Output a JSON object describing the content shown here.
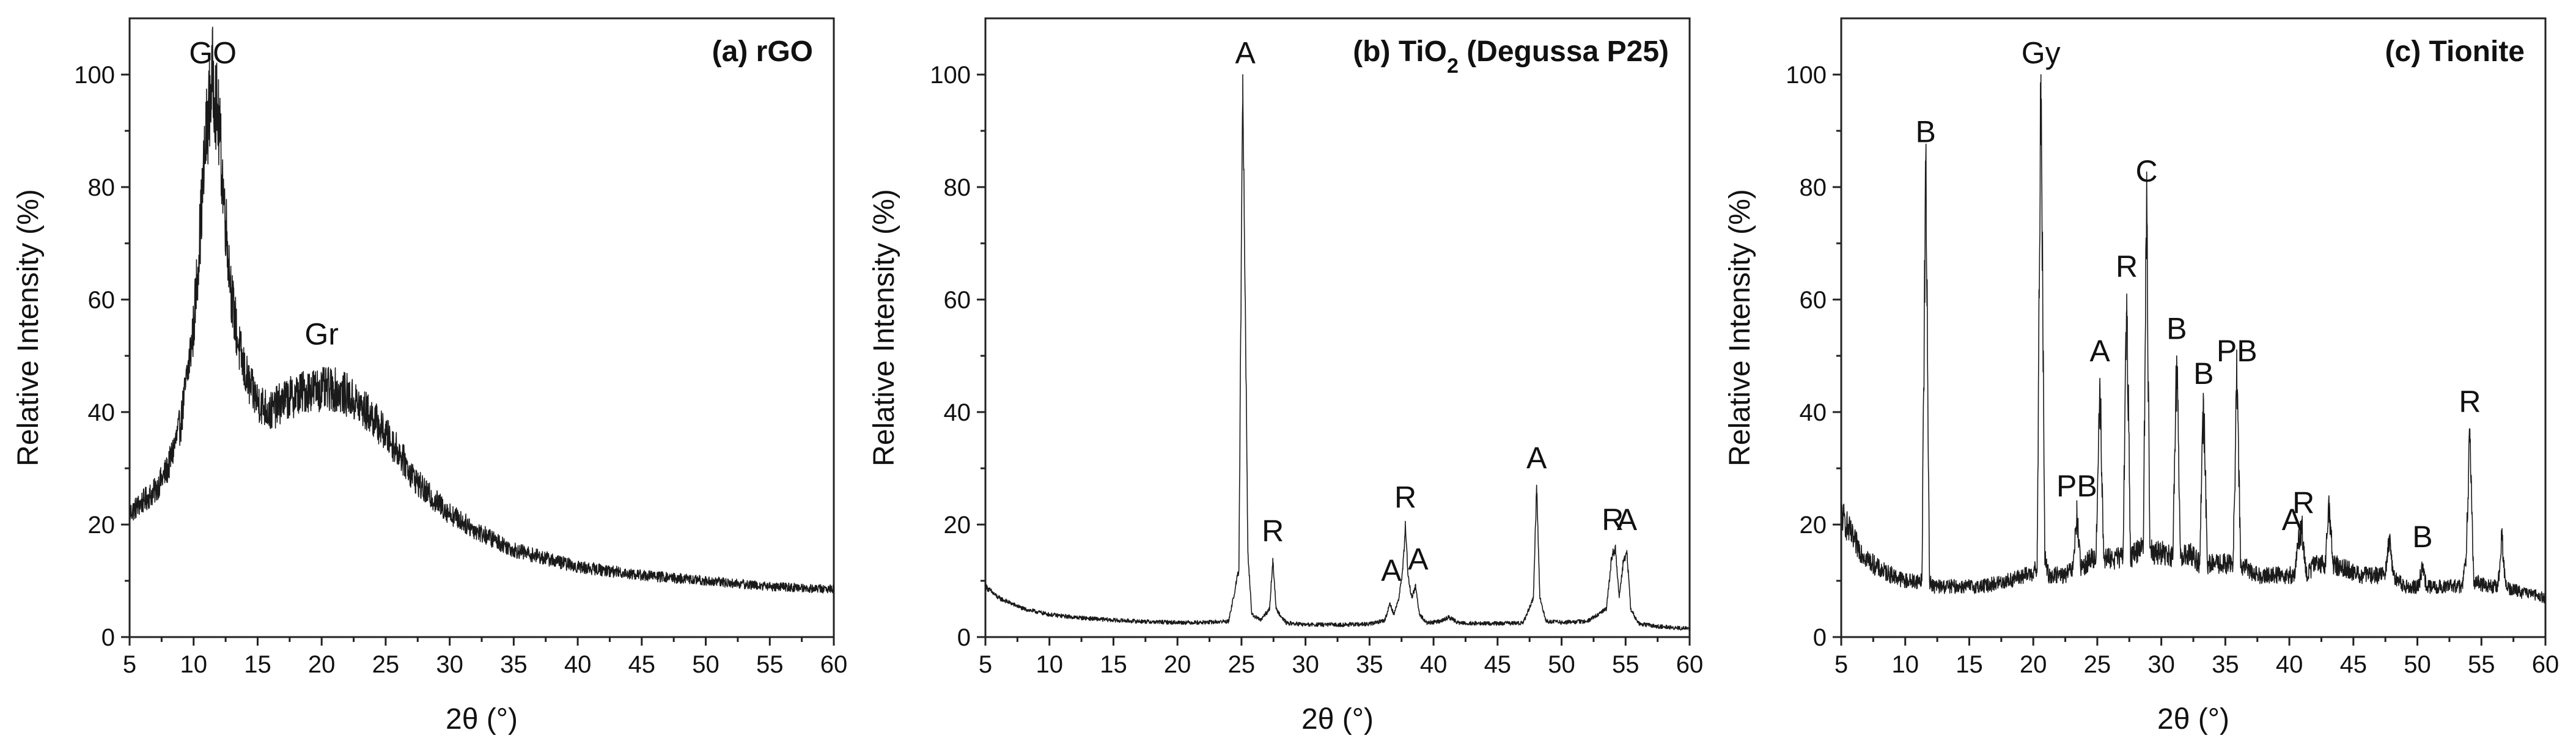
{
  "chart_data": [
    {
      "type": "line",
      "title": "(a) rGO",
      "xlabel": "2θ (°)",
      "ylabel": "Relative Intensity (%)",
      "xlim": [
        5,
        60
      ],
      "ylim": [
        0,
        110
      ],
      "xticks": [
        5,
        10,
        15,
        20,
        25,
        30,
        35,
        40,
        45,
        50,
        55,
        60
      ],
      "yticks": [
        0,
        20,
        40,
        60,
        80,
        100
      ],
      "line_color": "#1a1a1a",
      "series": [
        {
          "name": "rGO",
          "x": [
            5,
            6,
            7,
            8,
            9,
            10,
            10.5,
            11,
            11.5,
            12,
            12.5,
            13,
            13.5,
            14,
            14.5,
            15,
            16,
            17,
            18,
            19,
            20,
            21,
            22,
            23,
            24,
            25,
            26,
            27,
            28,
            30,
            32,
            35,
            40,
            45,
            50,
            55,
            60
          ],
          "y": [
            22,
            24,
            26,
            30,
            38,
            55,
            72,
            90,
            100,
            90,
            74,
            60,
            52,
            47,
            44,
            42,
            40,
            42,
            43,
            44,
            44,
            44,
            43,
            41,
            39,
            36,
            33,
            29,
            26,
            22,
            19,
            15.5,
            12.5,
            11,
            10,
            9,
            8.5
          ]
        }
      ],
      "annotations": [
        {
          "text": "GO",
          "x": 11.5,
          "y": 102
        },
        {
          "text": "Gr",
          "x": 20,
          "y": 52
        }
      ]
    },
    {
      "type": "line",
      "title": "(b) TiO2 (Degussa P25)",
      "title_parts": {
        "pre": "(b) TiO",
        "sub": "2",
        "post": " (Degussa P25)"
      },
      "xlabel": "2θ (°)",
      "ylabel": "Relative Intensity (%)",
      "xlim": [
        5,
        60
      ],
      "ylim": [
        0,
        110
      ],
      "xticks": [
        5,
        10,
        15,
        20,
        25,
        30,
        35,
        40,
        45,
        50,
        55,
        60
      ],
      "yticks": [
        0,
        20,
        40,
        60,
        80,
        100
      ],
      "line_color": "#1a1a1a",
      "series": [
        {
          "name": "TiO2 (Degussa P25)",
          "x": [
            5,
            6,
            7,
            8,
            10,
            12,
            15,
            18,
            20,
            22,
            24,
            24.8,
            25.1,
            25.3,
            25.5,
            25.8,
            26.5,
            27.2,
            27.45,
            27.7,
            28.5,
            30,
            33,
            35,
            36.2,
            36.6,
            36.9,
            37.3,
            37.6,
            37.8,
            38.0,
            38.3,
            38.6,
            38.9,
            39.5,
            40.5,
            41.2,
            42,
            44,
            47,
            47.8,
            48.05,
            48.3,
            48.8,
            50,
            52,
            53.5,
            53.9,
            54.2,
            54.5,
            54.8,
            55.1,
            55.4,
            56,
            57,
            58,
            60
          ],
          "y": [
            9,
            7,
            6,
            5,
            4,
            3.5,
            3,
            2.7,
            2.6,
            2.6,
            2.8,
            12,
            100,
            60,
            15,
            4,
            3,
            5,
            14,
            5,
            2.5,
            2.2,
            2.2,
            2.3,
            3,
            6,
            4,
            7,
            12,
            20,
            11,
            7,
            9,
            4,
            2.5,
            2.8,
            3.5,
            2.5,
            2.4,
            2.5,
            7,
            27,
            7,
            2.8,
            2.6,
            2.8,
            5,
            14,
            16,
            7,
            13,
            15,
            5,
            2.5,
            2,
            1.8,
            1.5
          ]
        }
      ],
      "annotations": [
        {
          "text": "A",
          "x": 25.3,
          "y": 102
        },
        {
          "text": "R",
          "x": 27.45,
          "y": 17
        },
        {
          "text": "A",
          "x": 36.7,
          "y": 10
        },
        {
          "text": "R",
          "x": 37.8,
          "y": 23
        },
        {
          "text": "A",
          "x": 38.8,
          "y": 12
        },
        {
          "text": "A",
          "x": 48.05,
          "y": 30
        },
        {
          "text": "R",
          "x": 54,
          "y": 19
        },
        {
          "text": "A",
          "x": 55.1,
          "y": 19
        }
      ]
    },
    {
      "type": "line",
      "title": "(c) Tionite",
      "xlabel": "2θ (°)",
      "ylabel": "Relative Intensity (%)",
      "xlim": [
        5,
        60
      ],
      "ylim": [
        0,
        110
      ],
      "xticks": [
        5,
        10,
        15,
        20,
        25,
        30,
        35,
        40,
        45,
        50,
        55,
        60
      ],
      "yticks": [
        0,
        20,
        40,
        60,
        80,
        100
      ],
      "line_color": "#1a1a1a",
      "series": [
        {
          "name": "Tionite",
          "x": [
            5,
            6,
            7,
            8,
            9,
            10,
            11.3,
            11.6,
            11.9,
            12.2,
            12.6,
            14,
            16,
            18,
            19.5,
            20.3,
            20.6,
            20.9,
            21.2,
            21.5,
            22.5,
            23.1,
            23.4,
            23.7,
            24.5,
            24.9,
            25.2,
            25.5,
            26.3,
            27.0,
            27.3,
            27.6,
            28.0,
            28.6,
            28.85,
            29.1,
            29.4,
            30.2,
            30.9,
            31.2,
            31.5,
            32.3,
            33.0,
            33.3,
            33.6,
            34.5,
            35.6,
            35.9,
            36.2,
            37.5,
            39,
            40.4,
            40.7,
            41.0,
            41.3,
            42,
            42.8,
            43.1,
            43.4,
            44.5,
            45.5,
            47.5,
            47.8,
            48.1,
            49,
            50.1,
            50.4,
            50.7,
            52,
            53.5,
            53.8,
            54.1,
            54.4,
            55.5,
            56.3,
            56.6,
            56.9,
            58,
            60
          ],
          "y": [
            22,
            17,
            14,
            12,
            11,
            10,
            10,
            84,
            10,
            9,
            9,
            9,
            9,
            10,
            11,
            12,
            100,
            14,
            11,
            11,
            11,
            12,
            22,
            12,
            14,
            14,
            46,
            14,
            14,
            14,
            61,
            14,
            15,
            17,
            78,
            17,
            15,
            15,
            14,
            50,
            14,
            15,
            13,
            42,
            13,
            13,
            13,
            46,
            13,
            11,
            11,
            11,
            17,
            19,
            11,
            13,
            13,
            24,
            13,
            12,
            11,
            11,
            18,
            11,
            9,
            9,
            13,
            9,
            9,
            9,
            14,
            37,
            10,
            9,
            9,
            18,
            9,
            8,
            7
          ]
        }
      ],
      "annotations": [
        {
          "text": "B",
          "x": 11.6,
          "y": 88
        },
        {
          "text": "Gy",
          "x": 20.6,
          "y": 102
        },
        {
          "text": "PB",
          "x": 23.4,
          "y": 25
        },
        {
          "text": "A",
          "x": 25.2,
          "y": 49
        },
        {
          "text": "R",
          "x": 27.3,
          "y": 64
        },
        {
          "text": "C",
          "x": 28.85,
          "y": 81
        },
        {
          "text": "B",
          "x": 31.2,
          "y": 53
        },
        {
          "text": "B",
          "x": 33.3,
          "y": 45
        },
        {
          "text": "PB",
          "x": 35.9,
          "y": 49
        },
        {
          "text": "A",
          "x": 40.2,
          "y": 19
        },
        {
          "text": "R",
          "x": 41.1,
          "y": 22
        },
        {
          "text": "B",
          "x": 50.4,
          "y": 16
        },
        {
          "text": "R",
          "x": 54.1,
          "y": 40
        }
      ]
    }
  ]
}
